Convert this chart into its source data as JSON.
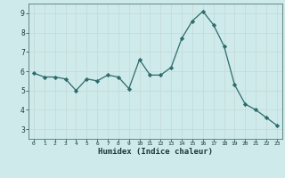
{
  "x": [
    0,
    1,
    2,
    3,
    4,
    5,
    6,
    7,
    8,
    9,
    10,
    11,
    12,
    13,
    14,
    15,
    16,
    17,
    18,
    19,
    20,
    21,
    22,
    23
  ],
  "y": [
    5.9,
    5.7,
    5.7,
    5.6,
    5.0,
    5.6,
    5.5,
    5.8,
    5.7,
    5.1,
    6.6,
    5.8,
    5.8,
    6.2,
    7.7,
    8.6,
    9.1,
    8.4,
    7.3,
    5.3,
    4.3,
    4.0,
    3.6,
    3.2
  ],
  "xlim": [
    -0.5,
    23.5
  ],
  "ylim": [
    2.5,
    9.5
  ],
  "yticks": [
    3,
    4,
    5,
    6,
    7,
    8,
    9
  ],
  "xticks": [
    0,
    1,
    2,
    3,
    4,
    5,
    6,
    7,
    8,
    9,
    10,
    11,
    12,
    13,
    14,
    15,
    16,
    17,
    18,
    19,
    20,
    21,
    22,
    23
  ],
  "xlabel": "Humidex (Indice chaleur)",
  "line_color": "#2e6b6b",
  "marker": "D",
  "marker_size": 2.2,
  "bg_color": "#ceeaea",
  "grid_color": "#b8d8d8",
  "grid_minor_color": "#d6eded"
}
